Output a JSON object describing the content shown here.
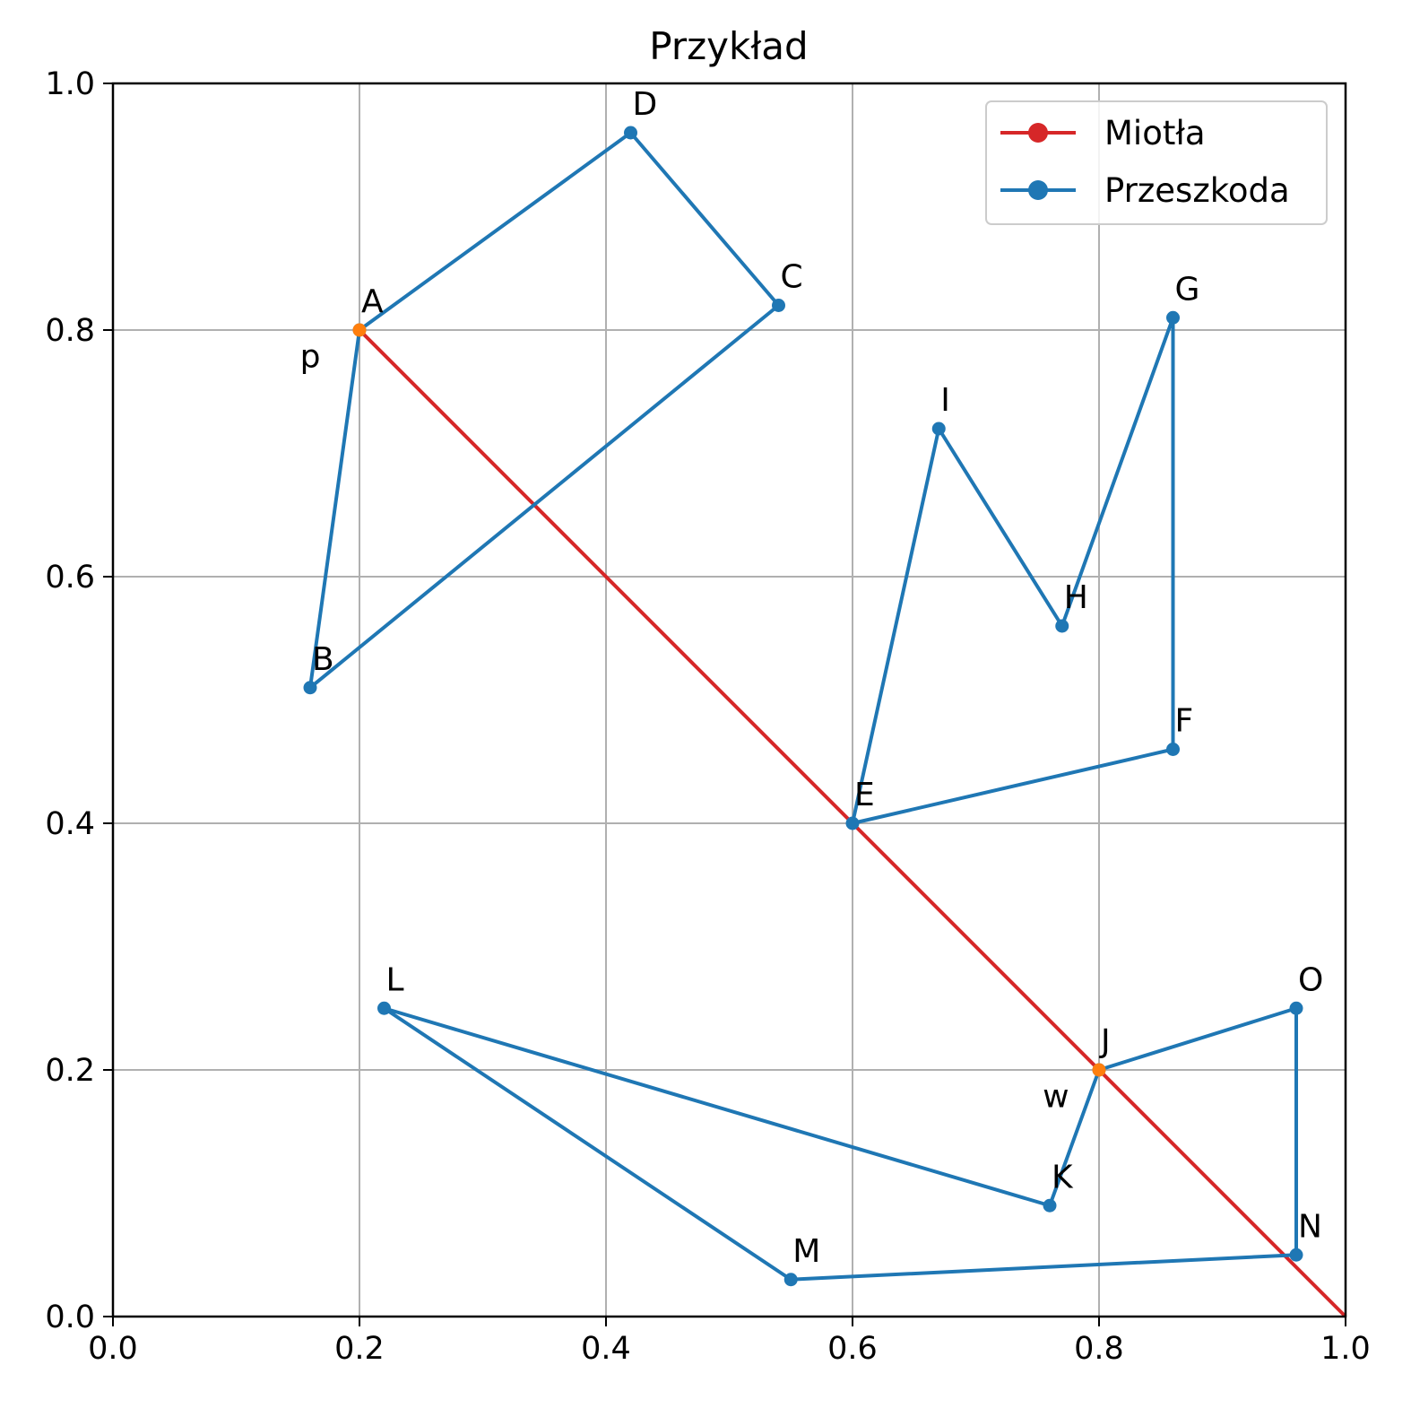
{
  "chart_data": {
    "type": "line",
    "title": "Przykład",
    "xlabel": "",
    "ylabel": "",
    "xlim": [
      0.0,
      1.0
    ],
    "ylim": [
      0.0,
      1.0
    ],
    "grid": true,
    "legend_position": "top-right",
    "x_ticks": [
      "0.0",
      "0.2",
      "0.4",
      "0.6",
      "0.8",
      "1.0"
    ],
    "y_ticks": [
      "0.0",
      "0.2",
      "0.4",
      "0.6",
      "0.8",
      "1.0"
    ],
    "colors": {
      "broom": "#d62728",
      "obstacle": "#1f77b4",
      "highlight": "#ff7f0e",
      "grid": "#b0b0b0"
    },
    "series": [
      {
        "name": "Miotła",
        "color": "#d62728",
        "points": [
          [
            0.2,
            0.8
          ],
          [
            1.0,
            0.0
          ]
        ]
      },
      {
        "name": "Przeszkoda",
        "color": "#1f77b4",
        "polygons": [
          [
            [
              0.2,
              0.8
            ],
            [
              0.42,
              0.96
            ],
            [
              0.54,
              0.82
            ],
            [
              0.16,
              0.51
            ]
          ],
          [
            [
              0.6,
              0.4
            ],
            [
              0.67,
              0.72
            ],
            [
              0.77,
              0.56
            ],
            [
              0.86,
              0.81
            ],
            [
              0.86,
              0.46
            ]
          ],
          [
            [
              0.8,
              0.2
            ],
            [
              0.76,
              0.09
            ],
            [
              0.22,
              0.25
            ],
            [
              0.55,
              0.03
            ],
            [
              0.96,
              0.05
            ],
            [
              0.96,
              0.25
            ]
          ]
        ]
      }
    ],
    "point_labels": [
      {
        "label": "A",
        "x": 0.2,
        "y": 0.8,
        "highlight": true
      },
      {
        "label": "B",
        "x": 0.16,
        "y": 0.51
      },
      {
        "label": "C",
        "x": 0.54,
        "y": 0.82
      },
      {
        "label": "D",
        "x": 0.42,
        "y": 0.96
      },
      {
        "label": "E",
        "x": 0.6,
        "y": 0.4
      },
      {
        "label": "F",
        "x": 0.86,
        "y": 0.46
      },
      {
        "label": "G",
        "x": 0.86,
        "y": 0.81
      },
      {
        "label": "H",
        "x": 0.77,
        "y": 0.56
      },
      {
        "label": "I",
        "x": 0.67,
        "y": 0.72
      },
      {
        "label": "J",
        "x": 0.8,
        "y": 0.2,
        "highlight": true
      },
      {
        "label": "K",
        "x": 0.76,
        "y": 0.09
      },
      {
        "label": "L",
        "x": 0.22,
        "y": 0.25
      },
      {
        "label": "M",
        "x": 0.55,
        "y": 0.03
      },
      {
        "label": "N",
        "x": 0.96,
        "y": 0.05
      },
      {
        "label": "O",
        "x": 0.96,
        "y": 0.25
      }
    ],
    "annotations": [
      {
        "text": "p",
        "x": 0.16,
        "y": 0.77
      },
      {
        "text": "w",
        "x": 0.765,
        "y": 0.17
      }
    ]
  }
}
